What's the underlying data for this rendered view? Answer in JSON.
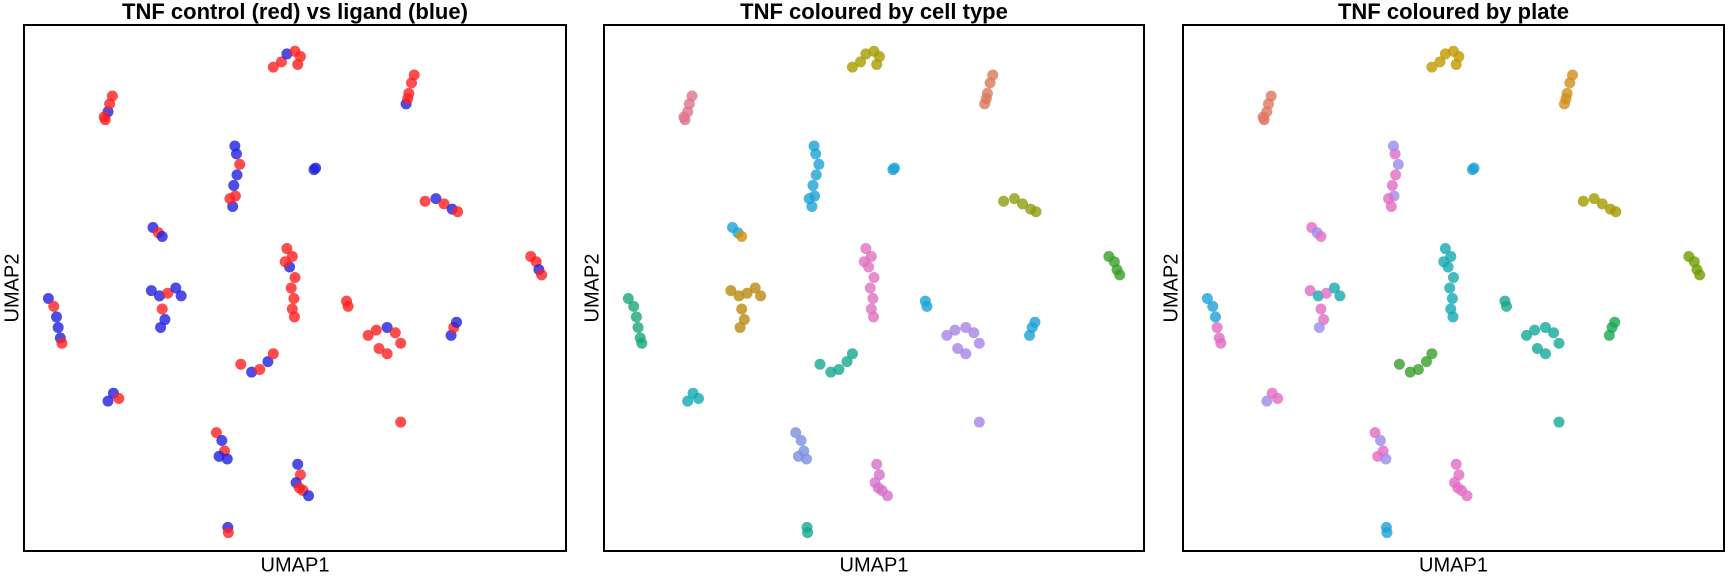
{
  "chart_data": [
    {
      "type": "scatter",
      "title": "TNF control (red) vs ligand (blue)",
      "xlabel": "UMAP1",
      "ylabel": "UMAP2",
      "xlim": [
        0,
        100
      ],
      "ylim": [
        0,
        100
      ],
      "x": [
        46,
        47.5,
        48.5,
        50,
        51,
        50.5,
        70.5,
        71,
        71.5,
        72,
        70.8,
        15,
        15.5,
        15.8,
        16.3,
        14.8,
        38.5,
        39,
        38.7,
        39.3,
        39.8,
        39.2,
        38.9,
        38,
        53.5,
        53.8,
        74,
        76,
        77.5,
        79,
        80,
        23.8,
        24.8,
        25.5,
        93.5,
        94.5,
        95,
        95.5,
        48.5,
        49.5,
        49,
        50,
        49.3,
        49.8,
        49.5,
        49.9,
        48.2,
        23.5,
        25,
        26.5,
        28,
        29,
        25.5,
        26,
        25.2,
        4.5,
        5.5,
        6,
        6.3,
        6.7,
        7,
        59.5,
        59.8,
        63.5,
        65,
        67,
        68.5,
        69.5,
        67,
        65.5,
        78.8,
        79.3,
        79.8,
        40,
        42,
        43.5,
        45,
        46,
        15.5,
        16.5,
        17.5,
        69.5,
        35.5,
        36.5,
        37,
        36,
        37.5,
        50.5,
        51,
        50.2,
        51.5,
        52.5,
        50.8,
        37.6,
        37.7
      ],
      "y": [
        92,
        93,
        94.5,
        95,
        94,
        92.5,
        85,
        87,
        89,
        90.5,
        86,
        82,
        83.5,
        85,
        86.5,
        82.5,
        65.5,
        67.5,
        69.5,
        71.5,
        73.5,
        75.5,
        77,
        67,
        72.5,
        72.8,
        66.5,
        67,
        66,
        65,
        64.5,
        61.5,
        60.5,
        59.8,
        56,
        55,
        53.5,
        52.5,
        57.5,
        56,
        54,
        52,
        50,
        48,
        46,
        44.5,
        55,
        49.5,
        48.5,
        49,
        50,
        48.5,
        46,
        44,
        42.5,
        48,
        46.5,
        44.5,
        42.5,
        40.5,
        39.5,
        47.5,
        46.5,
        41,
        42,
        42.5,
        41.5,
        39.5,
        37.5,
        38.5,
        41,
        42.5,
        43.5,
        35.5,
        34,
        34.5,
        36,
        37.5,
        28.5,
        30,
        29,
        24.5,
        22.5,
        21,
        19,
        18,
        17.5,
        16.5,
        14.5,
        13,
        11.5,
        10.5,
        12,
        4.5,
        3.5
      ],
      "colors": [
        "#FF2020",
        "#FF2020",
        "#2020E0",
        "#FF2020",
        "#FF2020",
        "#FF2020",
        "#2020E0",
        "#FF2020",
        "#FF2020",
        "#FF2020",
        "#FF2020",
        "#FF2020",
        "#2020E0",
        "#FF2020",
        "#FF2020",
        "#FF2020",
        "#2020E0",
        "#FF2020",
        "#2020E0",
        "#2020E0",
        "#FF2020",
        "#2020E0",
        "#2020E0",
        "#FF2020",
        "#2020E0",
        "#2020E0",
        "#FF2020",
        "#2020E0",
        "#FF2020",
        "#2020E0",
        "#FF2020",
        "#2020E0",
        "#FF2020",
        "#2020E0",
        "#FF2020",
        "#FF2020",
        "#2020E0",
        "#FF2020",
        "#FF2020",
        "#FF2020",
        "#2020E0",
        "#FF2020",
        "#FF2020",
        "#FF2020",
        "#FF2020",
        "#FF2020",
        "#FF2020",
        "#2020E0",
        "#2020E0",
        "#FF2020",
        "#2020E0",
        "#2020E0",
        "#FF2020",
        "#2020E0",
        "#2020E0",
        "#2020E0",
        "#FF2020",
        "#2020E0",
        "#2020E0",
        "#2020E0",
        "#FF2020",
        "#FF2020",
        "#FF2020",
        "#FF2020",
        "#FF2020",
        "#2020E0",
        "#FF2020",
        "#FF2020",
        "#FF2020",
        "#FF2020",
        "#2020E0",
        "#FF2020",
        "#2020E0",
        "#FF2020",
        "#2020E0",
        "#FF2020",
        "#2020E0",
        "#FF2020",
        "#2020E0",
        "#2020E0",
        "#FF2020",
        "#FF2020",
        "#FF2020",
        "#2020E0",
        "#FF2020",
        "#2020E0",
        "#2020E0",
        "#2020E0",
        "#FF2020",
        "#2020E0",
        "#FF2020",
        "#2020E0",
        "#FF2020",
        "#2020E0",
        "#FF2020"
      ]
    },
    {
      "type": "scatter",
      "title": "TNF coloured by cell type",
      "xlabel": "UMAP1",
      "ylabel": "UMAP2",
      "xlim": [
        0,
        100
      ],
      "ylim": [
        0,
        100
      ],
      "x": [
        46,
        47.5,
        48.5,
        50,
        51,
        50.5,
        70.5,
        71,
        71.5,
        72,
        70.8,
        15,
        15.5,
        15.8,
        16.3,
        14.8,
        38.5,
        39,
        38.7,
        39.3,
        39.8,
        39.2,
        38.9,
        38,
        53.5,
        53.8,
        74,
        76,
        77.5,
        79,
        80,
        23.8,
        24.8,
        25.5,
        93.5,
        94.5,
        95,
        95.5,
        48.5,
        49.5,
        49,
        50,
        49.3,
        49.8,
        49.5,
        49.9,
        48.2,
        23.5,
        25,
        26.5,
        28,
        29,
        25.5,
        26,
        25.2,
        4.5,
        5.5,
        6,
        6.3,
        6.7,
        7,
        59.5,
        59.8,
        63.5,
        65,
        67,
        68.5,
        69.5,
        67,
        65.5,
        78.8,
        79.3,
        79.8,
        40,
        42,
        43.5,
        45,
        46,
        15.5,
        16.5,
        17.5,
        69.5,
        35.5,
        36.5,
        37,
        36,
        37.5,
        50.5,
        51,
        50.2,
        51.5,
        52.5,
        50.8,
        37.6,
        37.7
      ],
      "y": [
        92,
        93,
        94.5,
        95,
        94,
        92.5,
        85,
        87,
        89,
        90.5,
        86,
        82,
        83.5,
        85,
        86.5,
        82.5,
        65.5,
        67.5,
        69.5,
        71.5,
        73.5,
        75.5,
        77,
        67,
        72.5,
        72.8,
        66.5,
        67,
        66,
        65,
        64.5,
        61.5,
        60.5,
        59.8,
        56,
        55,
        53.5,
        52.5,
        57.5,
        56,
        54,
        52,
        50,
        48,
        46,
        44.5,
        55,
        49.5,
        48.5,
        49,
        50,
        48.5,
        46,
        44,
        42.5,
        48,
        46.5,
        44.5,
        42.5,
        40.5,
        39.5,
        47.5,
        46.5,
        41,
        42,
        42.5,
        41.5,
        39.5,
        37.5,
        38.5,
        41,
        42.5,
        43.5,
        35.5,
        34,
        34.5,
        36,
        37.5,
        28.5,
        30,
        29,
        24.5,
        22.5,
        21,
        19,
        18,
        17.5,
        16.5,
        14.5,
        13,
        11.5,
        10.5,
        12,
        4.5,
        3.5
      ],
      "colors": [
        "#A89B00",
        "#A89B00",
        "#A89B00",
        "#A89B00",
        "#A89B00",
        "#A89B00",
        "#D9795A",
        "#D9795A",
        "#D9795A",
        "#D9795A",
        "#D9795A",
        "#E0748C",
        "#E0748C",
        "#E0748C",
        "#E0748C",
        "#E0748C",
        "#1BA3D6",
        "#1BA3D6",
        "#1BA3D6",
        "#1BA3D6",
        "#1BA3D6",
        "#1BA3D6",
        "#1BA3D6",
        "#1BA3D6",
        "#1BA3D6",
        "#1BA3D6",
        "#8F9C0C",
        "#8F9C0C",
        "#8F9C0C",
        "#8F9C0C",
        "#8F9C0C",
        "#1BA3D6",
        "#1BA3D6",
        "#D89000",
        "#3A9E2A",
        "#3A9E2A",
        "#3A9E2A",
        "#3A9E2A",
        "#E070BE",
        "#E070BE",
        "#E070BE",
        "#E070BE",
        "#E070BE",
        "#E070BE",
        "#E070BE",
        "#E070BE",
        "#E070BE",
        "#B98A10",
        "#B98A10",
        "#B98A10",
        "#B98A10",
        "#B98A10",
        "#B98A10",
        "#B98A10",
        "#B98A10",
        "#1AA675",
        "#1AA675",
        "#1AA675",
        "#1AA675",
        "#1AA675",
        "#1AA675",
        "#1BA3D6",
        "#1BA3D6",
        "#A883E6",
        "#A883E6",
        "#A883E6",
        "#A883E6",
        "#A883E6",
        "#A883E6",
        "#A883E6",
        "#1BA3D6",
        "#1BA3D6",
        "#1BA3D6",
        "#14A98E",
        "#14A98E",
        "#14A98E",
        "#14A98E",
        "#14A98E",
        "#14A9B0",
        "#14A9B0",
        "#14A9B0",
        "#A883E6",
        "#7A90E0",
        "#7A90E0",
        "#7A90E0",
        "#7A90E0",
        "#7A90E0",
        "#D66FCC",
        "#D66FCC",
        "#D66FCC",
        "#D66FCC",
        "#D66FCC",
        "#D66FCC",
        "#14A98E",
        "#14A98E"
      ]
    },
    {
      "type": "scatter",
      "title": "TNF coloured by plate",
      "xlabel": "UMAP1",
      "ylabel": "UMAP2",
      "xlim": [
        0,
        100
      ],
      "ylim": [
        0,
        100
      ],
      "x": [
        46,
        47.5,
        48.5,
        50,
        51,
        50.5,
        70.5,
        71,
        71.5,
        72,
        70.8,
        15,
        15.5,
        15.8,
        16.3,
        14.8,
        38.5,
        39,
        38.7,
        39.3,
        39.8,
        39.2,
        38.9,
        38,
        53.5,
        53.8,
        74,
        76,
        77.5,
        79,
        80,
        23.8,
        24.8,
        25.5,
        93.5,
        94.5,
        95,
        95.5,
        48.5,
        49.5,
        49,
        50,
        49.3,
        49.8,
        49.5,
        49.9,
        48.2,
        23.5,
        25,
        26.5,
        28,
        29,
        25.5,
        26,
        25.2,
        4.5,
        5.5,
        6,
        6.3,
        6.7,
        7,
        59.5,
        59.8,
        63.5,
        65,
        67,
        68.5,
        69.5,
        67,
        65.5,
        78.8,
        79.3,
        79.8,
        40,
        42,
        43.5,
        45,
        46,
        15.5,
        16.5,
        17.5,
        69.5,
        35.5,
        36.5,
        37,
        36,
        37.5,
        50.5,
        51,
        50.2,
        51.5,
        52.5,
        50.8,
        37.6,
        37.7
      ],
      "y": [
        92,
        93,
        94.5,
        95,
        94,
        92.5,
        85,
        87,
        89,
        90.5,
        86,
        82,
        83.5,
        85,
        86.5,
        82.5,
        65.5,
        67.5,
        69.5,
        71.5,
        73.5,
        75.5,
        77,
        67,
        72.5,
        72.8,
        66.5,
        67,
        66,
        65,
        64.5,
        61.5,
        60.5,
        59.8,
        56,
        55,
        53.5,
        52.5,
        57.5,
        56,
        54,
        52,
        50,
        48,
        46,
        44.5,
        55,
        49.5,
        48.5,
        49,
        50,
        48.5,
        46,
        44,
        42.5,
        48,
        46.5,
        44.5,
        42.5,
        40.5,
        39.5,
        47.5,
        46.5,
        41,
        42,
        42.5,
        41.5,
        39.5,
        37.5,
        38.5,
        41,
        42.5,
        43.5,
        35.5,
        34,
        34.5,
        36,
        37.5,
        28.5,
        30,
        29,
        24.5,
        22.5,
        21,
        19,
        18,
        17.5,
        16.5,
        14.5,
        13,
        11.5,
        10.5,
        12,
        4.5,
        3.5
      ],
      "colors": [
        "#C09A00",
        "#C09A00",
        "#C09A00",
        "#C09A00",
        "#C09A00",
        "#C09A00",
        "#D18F1C",
        "#D18F1C",
        "#D18F1C",
        "#D18F1C",
        "#D18F1C",
        "#DE7660",
        "#DE7660",
        "#DE7660",
        "#DE7660",
        "#DE7660",
        "#E26CC4",
        "#9C8CE8",
        "#E26CC4",
        "#E26CC4",
        "#9C8CE8",
        "#E26CC4",
        "#9C8CE8",
        "#E26CC4",
        "#1BA3D6",
        "#1BA3D6",
        "#A19A00",
        "#A19A00",
        "#A19A00",
        "#A19A00",
        "#A19A00",
        "#E26CC4",
        "#9C8CE8",
        "#E26CC4",
        "#6E9C00",
        "#6E9C00",
        "#6E9C00",
        "#6E9C00",
        "#14A9B0",
        "#14A9B0",
        "#14A9B0",
        "#14A9B0",
        "#14A9B0",
        "#14A9B0",
        "#14A9B0",
        "#14A9B0",
        "#14A9B0",
        "#E26CC4",
        "#14A9B0",
        "#E26CC4",
        "#14A9B0",
        "#14A9B0",
        "#E26CC4",
        "#E26CC4",
        "#9C8CE8",
        "#1BA3D6",
        "#1BA3D6",
        "#1BA3D6",
        "#E26CC4",
        "#E26CC4",
        "#E26CC4",
        "#1AA68A",
        "#1AA68A",
        "#14A99A",
        "#14A99A",
        "#14A99A",
        "#14A99A",
        "#14A99A",
        "#14A99A",
        "#14A99A",
        "#1AA655",
        "#1AA655",
        "#1AA655",
        "#3A9E2A",
        "#3A9E2A",
        "#3A9E2A",
        "#3A9E2A",
        "#3A9E2A",
        "#9C8CE8",
        "#E26CC4",
        "#E26CC4",
        "#14A99A",
        "#E26CC4",
        "#9C8CE8",
        "#E26CC4",
        "#E26CC4",
        "#9C8CE8",
        "#E26CC4",
        "#E26CC4",
        "#E26CC4",
        "#E26CC4",
        "#E26CC4",
        "#E26CC4",
        "#1BA3D6",
        "#1BA3D6"
      ]
    }
  ]
}
